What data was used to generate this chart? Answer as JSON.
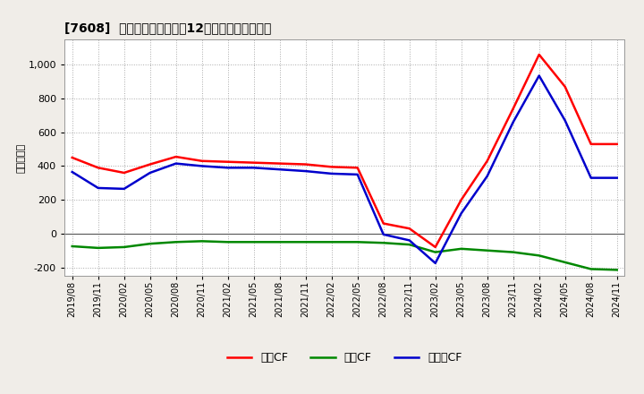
{
  "title": "[7608]  キャッシュフローの12か月移動合計の推移",
  "ylabel": "（百万円）",
  "background_color": "#f0ede8",
  "plot_bg_color": "#ffffff",
  "grid_color": "#aaaaaa",
  "xlabels": [
    "2019/08",
    "2019/11",
    "2020/02",
    "2020/05",
    "2020/08",
    "2020/11",
    "2021/02",
    "2021/05",
    "2021/08",
    "2021/11",
    "2022/02",
    "2022/05",
    "2022/08",
    "2022/11",
    "2023/02",
    "2023/05",
    "2023/08",
    "2023/11",
    "2024/02",
    "2024/05",
    "2024/08",
    "2024/11"
  ],
  "operating_cf": [
    450,
    390,
    360,
    410,
    455,
    430,
    425,
    420,
    415,
    410,
    395,
    390,
    60,
    30,
    -80,
    200,
    430,
    740,
    1060,
    870,
    530,
    530
  ],
  "investing_cf": [
    -75,
    -85,
    -80,
    -60,
    -50,
    -45,
    -50,
    -50,
    -50,
    -50,
    -50,
    -50,
    -55,
    -65,
    -110,
    -90,
    -100,
    -110,
    -130,
    -170,
    -210,
    -215
  ],
  "free_cf": [
    365,
    270,
    265,
    360,
    415,
    400,
    390,
    390,
    380,
    370,
    355,
    350,
    -5,
    -40,
    -175,
    120,
    340,
    660,
    935,
    670,
    330,
    330
  ],
  "ylim_min": -250,
  "ylim_max": 1150,
  "yticks": [
    -200,
    0,
    200,
    400,
    600,
    800,
    1000
  ],
  "operating_color": "#ff0000",
  "investing_color": "#008800",
  "free_color": "#0000cc",
  "line_width": 1.8,
  "legend_labels": [
    "営業CF",
    "投資CF",
    "フリーCF"
  ]
}
